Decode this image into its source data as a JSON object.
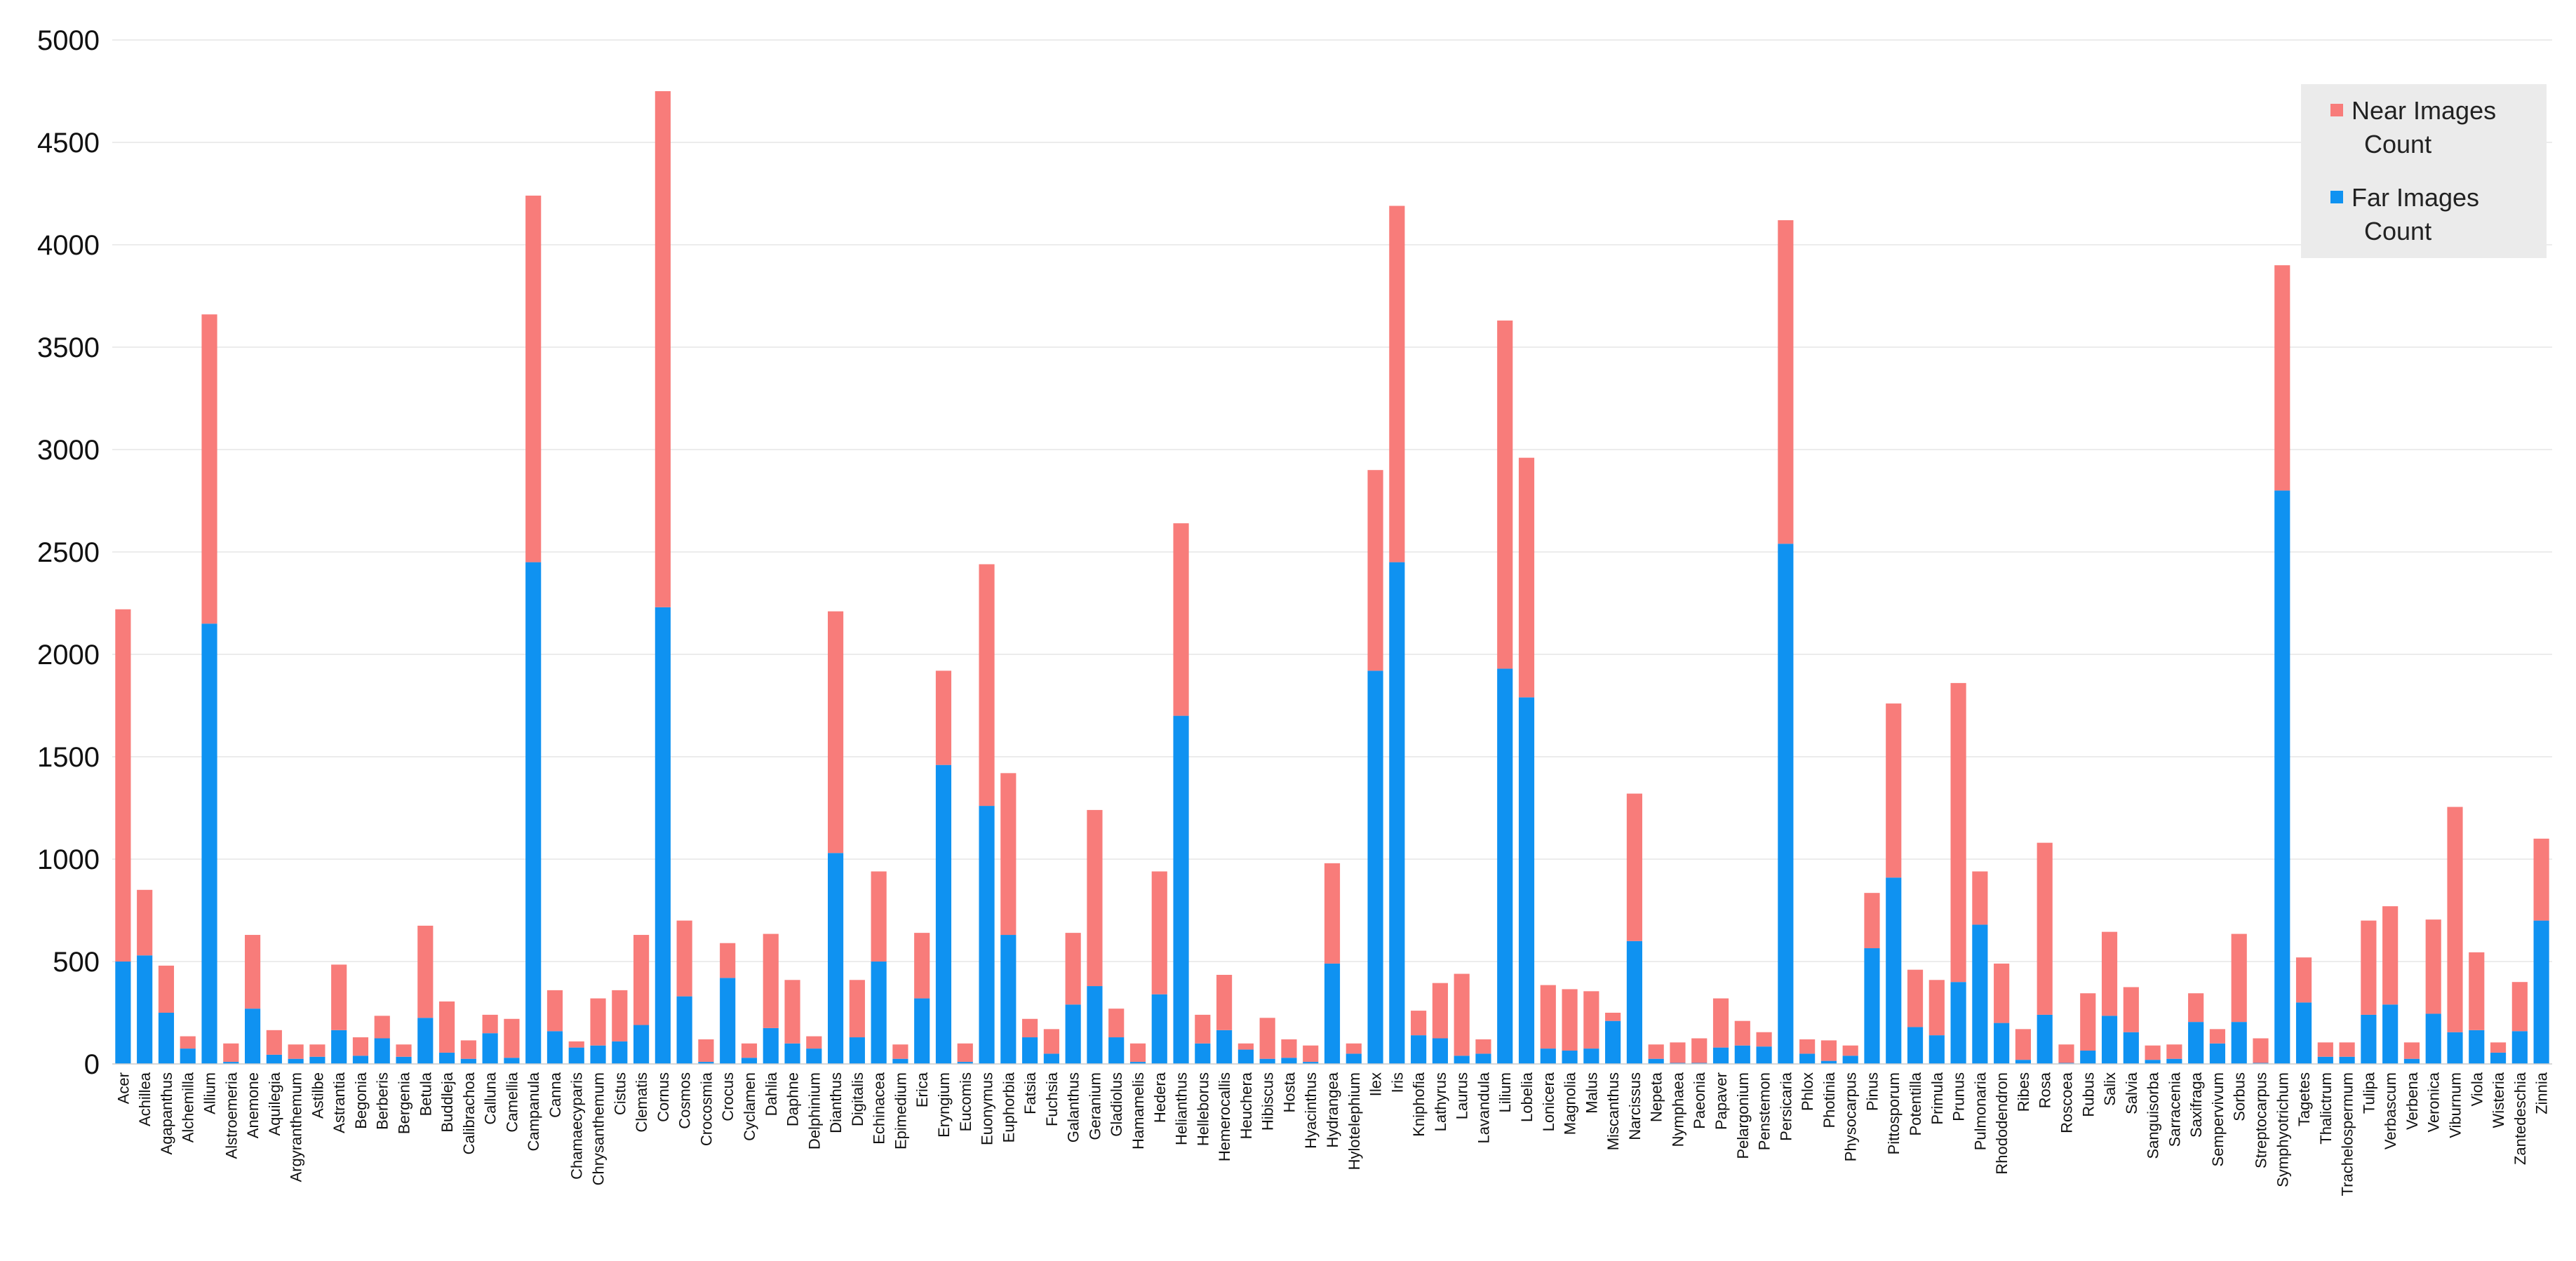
{
  "chart_data": {
    "type": "bar",
    "stacked": true,
    "ylim": [
      0,
      5000
    ],
    "yticks": [
      0,
      500,
      1000,
      1500,
      2000,
      2500,
      3000,
      3500,
      4000,
      4500,
      5000
    ],
    "grid": true,
    "legend_position": "top-right",
    "categories": [
      "Acer",
      "Achillea",
      "Agapanthus",
      "Alchemilla",
      "Allium",
      "Alstroemeria",
      "Anemone",
      "Aquilegia",
      "Argyranthemum",
      "Astilbe",
      "Astrantia",
      "Begonia",
      "Berberis",
      "Bergenia",
      "Betula",
      "Buddleja",
      "Calibrachoa",
      "Calluna",
      "Camellia",
      "Campanula",
      "Canna",
      "Chamaecyparis",
      "Chrysanthemum",
      "Cistus",
      "Clematis",
      "Cornus",
      "Cosmos",
      "Crocosmia",
      "Crocus",
      "Cyclamen",
      "Dahlia",
      "Daphne",
      "Delphinium",
      "Dianthus",
      "Digitalis",
      "Echinacea",
      "Epimedium",
      "Erica",
      "Eryngium",
      "Eucomis",
      "Euonymus",
      "Euphorbia",
      "Fatsia",
      "Fuchsia",
      "Galanthus",
      "Geranium",
      "Gladiolus",
      "Hamamelis",
      "Hedera",
      "Helianthus",
      "Helleborus",
      "Hemerocallis",
      "Heuchera",
      "Hibiscus",
      "Hosta",
      "Hyacinthus",
      "Hydrangea",
      "Hylotelephium",
      "Ilex",
      "Iris",
      "Kniphofia",
      "Lathyrus",
      "Laurus",
      "Lavandula",
      "Lilium",
      "Lobelia",
      "Lonicera",
      "Magnolia",
      "Malus",
      "Miscanthus",
      "Narcissus",
      "Nepeta",
      "Nymphaea",
      "Paeonia",
      "Papaver",
      "Pelargonium",
      "Penstemon",
      "Persicaria",
      "Phlox",
      "Photinia",
      "Physocarpus",
      "Pinus",
      "Pittosporum",
      "Potentilla",
      "Primula",
      "Prunus",
      "Pulmonaria",
      "Rhododendron",
      "Ribes",
      "Rosa",
      "Roscoea",
      "Rubus",
      "Salix",
      "Salvia",
      "Sanguisorba",
      "Sarracenia",
      "Saxifraga",
      "Sempervivum",
      "Sorbus",
      "Streptocarpus",
      "Symphyotrichum",
      "Tagetes",
      "Thalictrum",
      "Trachelospermum",
      "Tulipa",
      "Verbascum",
      "Verbena",
      "Veronica",
      "Viburnum",
      "Viola",
      "Wisteria",
      "Zantedeschia",
      "Zinnia"
    ],
    "series": [
      {
        "name": "Near Images Count",
        "color": "#f87c7a",
        "values": [
          1720,
          320,
          230,
          60,
          1510,
          90,
          360,
          120,
          70,
          60,
          320,
          90,
          110,
          60,
          450,
          250,
          90,
          90,
          190,
          1790,
          200,
          30,
          230,
          250,
          440,
          2520,
          370,
          110,
          170,
          70,
          460,
          310,
          60,
          1180,
          280,
          440,
          70,
          320,
          460,
          90,
          1180,
          790,
          90,
          120,
          350,
          860,
          140,
          90,
          600,
          940,
          140,
          270,
          30,
          200,
          90,
          80,
          490,
          50,
          980,
          1740,
          120,
          270,
          400,
          70,
          1700,
          1170,
          310,
          300,
          280,
          40,
          720,
          70,
          100,
          120,
          240,
          120,
          70,
          1580,
          70,
          100,
          50,
          270,
          850,
          280,
          270,
          1460,
          260,
          290,
          150,
          840,
          90,
          280,
          410,
          220,
          70,
          70,
          140,
          70,
          430,
          120,
          1100,
          220,
          70,
          70,
          460,
          480,
          80,
          460,
          1100,
          380,
          50,
          240,
          400
        ],
        "show_in_legend": true
      },
      {
        "name": "Far Images Count",
        "color": "#0f92f1",
        "values": [
          500,
          530,
          250,
          75,
          2150,
          10,
          270,
          45,
          25,
          35,
          165,
          40,
          125,
          35,
          225,
          55,
          25,
          150,
          30,
          2450,
          160,
          80,
          90,
          110,
          190,
          2230,
          330,
          10,
          420,
          30,
          175,
          100,
          75,
          1030,
          130,
          500,
          25,
          320,
          1460,
          10,
          1260,
          630,
          130,
          50,
          290,
          380,
          130,
          10,
          340,
          1700,
          100,
          165,
          70,
          25,
          30,
          10,
          490,
          50,
          1920,
          2450,
          140,
          125,
          40,
          50,
          1930,
          1790,
          75,
          65,
          75,
          210,
          600,
          25,
          5,
          5,
          80,
          90,
          85,
          2540,
          50,
          15,
          40,
          565,
          910,
          180,
          140,
          400,
          680,
          200,
          20,
          240,
          5,
          65,
          235,
          155,
          20,
          25,
          205,
          100,
          205,
          5,
          2800,
          300,
          35,
          35,
          240,
          290,
          25,
          245,
          155,
          165,
          55,
          160,
          700
        ],
        "show_in_legend": true
      }
    ],
    "legend": {
      "items": [
        {
          "line1": "Near Images",
          "line2": "Count",
          "color": "#f87c7a"
        },
        {
          "line1": "Far Images",
          "line2": "Count",
          "color": "#0f92f1"
        }
      ]
    }
  }
}
